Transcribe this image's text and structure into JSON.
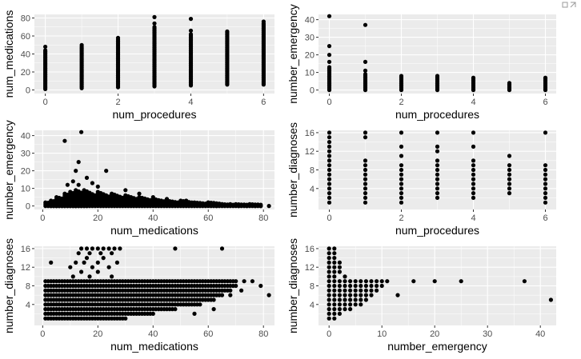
{
  "chart_data": [
    {
      "type": "scatter",
      "xlabel": "num_procedures",
      "ylabel": "num_medications",
      "xlim": [
        -0.3,
        6.3
      ],
      "ylim": [
        -4,
        84
      ],
      "xticks": [
        0,
        2,
        4,
        6
      ],
      "xminor": [
        1,
        3,
        5
      ],
      "yticks": [
        0,
        20,
        40,
        60,
        80
      ],
      "yminor": [
        10,
        30,
        50,
        70
      ],
      "ticklabels_x": [
        "0",
        "2",
        "4",
        "6"
      ],
      "ticklabels_y": [
        "0",
        "20",
        "40",
        "60",
        "80"
      ],
      "columns": [
        {
          "x": 0,
          "from": 1,
          "to": 44
        },
        {
          "x": 0,
          "y": 48
        },
        {
          "x": 1,
          "from": 2,
          "to": 48
        },
        {
          "x": 1,
          "y": 50
        },
        {
          "x": 2,
          "from": 3,
          "to": 56
        },
        {
          "x": 2,
          "y": 58
        },
        {
          "x": 3,
          "from": 4,
          "to": 70
        },
        {
          "x": 3,
          "y": 74
        },
        {
          "x": 3,
          "y": 81
        },
        {
          "x": 4,
          "from": 5,
          "to": 62
        },
        {
          "x": 4,
          "y": 66
        },
        {
          "x": 4,
          "y": 79
        },
        {
          "x": 5,
          "from": 6,
          "to": 64
        },
        {
          "x": 5,
          "y": 65
        },
        {
          "x": 6,
          "from": 6,
          "to": 74
        },
        {
          "x": 6,
          "y": 76
        }
      ]
    },
    {
      "type": "scatter",
      "xlabel": "num_procedures",
      "ylabel": "number_emergency",
      "xlim": [
        -0.3,
        6.3
      ],
      "ylim": [
        -2,
        43
      ],
      "xticks": [
        0,
        2,
        4,
        6
      ],
      "xminor": [
        1,
        3,
        5
      ],
      "yticks": [
        0,
        10,
        20,
        30,
        40
      ],
      "yminor": [
        5,
        15,
        25,
        35
      ],
      "ticklabels_x": [
        "0",
        "2",
        "4",
        "6"
      ],
      "ticklabels_y": [
        "0",
        "10",
        "20",
        "30",
        "40"
      ],
      "columns": [
        {
          "x": 0,
          "from": 0,
          "to": 13
        },
        {
          "x": 0,
          "y": 16
        },
        {
          "x": 0,
          "y": 20
        },
        {
          "x": 0,
          "y": 25
        },
        {
          "x": 0,
          "y": 42
        },
        {
          "x": 1,
          "from": 0,
          "to": 9
        },
        {
          "x": 1,
          "y": 11
        },
        {
          "x": 1,
          "y": 16
        },
        {
          "x": 1,
          "y": 37
        },
        {
          "x": 2,
          "from": 0,
          "to": 8
        },
        {
          "x": 3,
          "from": 0,
          "to": 8
        },
        {
          "x": 4,
          "from": 0,
          "to": 7
        },
        {
          "x": 5,
          "from": 0,
          "to": 4
        },
        {
          "x": 6,
          "from": 0,
          "to": 7
        }
      ]
    },
    {
      "type": "scatter",
      "xlabel": "num_medications",
      "ylabel": "number_emergency",
      "xlim": [
        -3,
        84
      ],
      "ylim": [
        -2,
        43
      ],
      "xticks": [
        0,
        20,
        40,
        60,
        80
      ],
      "xminor": [
        10,
        30,
        50,
        70
      ],
      "yticks": [
        0,
        10,
        20,
        30,
        40
      ],
      "yminor": [
        5,
        15,
        25,
        35
      ],
      "ticklabels_x": [
        "0",
        "20",
        "40",
        "60",
        "80"
      ],
      "ticklabels_y": [
        "0",
        "10",
        "20",
        "30",
        "40"
      ],
      "envelope": [
        [
          1,
          2
        ],
        [
          3,
          3
        ],
        [
          5,
          5
        ],
        [
          8,
          7
        ],
        [
          10,
          8
        ],
        [
          12,
          9
        ],
        [
          15,
          9
        ],
        [
          20,
          8
        ],
        [
          25,
          7
        ],
        [
          30,
          6
        ],
        [
          35,
          5
        ],
        [
          40,
          4
        ],
        [
          45,
          3
        ],
        [
          50,
          3
        ],
        [
          55,
          2
        ],
        [
          60,
          2
        ],
        [
          65,
          1
        ],
        [
          70,
          1
        ],
        [
          75,
          1
        ]
      ],
      "points": [
        [
          8,
          37
        ],
        [
          14,
          42
        ],
        [
          13,
          25
        ],
        [
          23,
          20
        ],
        [
          12,
          20
        ],
        [
          16,
          16
        ],
        [
          11,
          14
        ],
        [
          18,
          13
        ],
        [
          9,
          12
        ],
        [
          13,
          12
        ],
        [
          20,
          11
        ],
        [
          30,
          9
        ],
        [
          35,
          7
        ],
        [
          40,
          5
        ],
        [
          45,
          4
        ],
        [
          52,
          3
        ],
        [
          60,
          2
        ],
        [
          65,
          1
        ],
        [
          68,
          1
        ],
        [
          71,
          0
        ],
        [
          74,
          0
        ],
        [
          77,
          0
        ],
        [
          82,
          0
        ],
        [
          79,
          0
        ],
        [
          63,
          0
        ],
        [
          55,
          1
        ]
      ]
    },
    {
      "type": "scatter",
      "xlabel": "num_procedures",
      "ylabel": "number_diagnoses",
      "xlim": [
        -0.3,
        6.3
      ],
      "ylim": [
        -0.5,
        16.5
      ],
      "xticks": [
        0,
        2,
        4,
        6
      ],
      "xminor": [
        1,
        3,
        5
      ],
      "yticks": [
        4,
        8,
        12,
        16
      ],
      "yminor": [
        2,
        6,
        10,
        14
      ],
      "ticklabels_x": [
        "0",
        "2",
        "4",
        "6"
      ],
      "ticklabels_y": [
        "4",
        "8",
        "12",
        "16"
      ],
      "columns": [
        {
          "x": 0,
          "values": [
            1,
            2,
            3,
            4,
            5,
            6,
            7,
            8,
            9,
            10,
            11,
            12,
            13,
            14,
            15,
            16
          ]
        },
        {
          "x": 1,
          "values": [
            1,
            2,
            3,
            4,
            5,
            6,
            7,
            8,
            9,
            10,
            15,
            16
          ]
        },
        {
          "x": 2,
          "values": [
            1,
            2,
            3,
            4,
            5,
            6,
            7,
            8,
            9,
            11,
            13,
            16
          ]
        },
        {
          "x": 3,
          "values": [
            2,
            3,
            4,
            5,
            6,
            7,
            8,
            9,
            10,
            12,
            13,
            16
          ]
        },
        {
          "x": 4,
          "values": [
            2,
            3,
            4,
            5,
            6,
            7,
            8,
            9,
            10,
            13,
            16
          ]
        },
        {
          "x": 5,
          "values": [
            3,
            4,
            5,
            6,
            7,
            8,
            9,
            11
          ]
        },
        {
          "x": 6,
          "values": [
            1,
            2,
            3,
            4,
            5,
            6,
            7,
            8,
            9,
            16
          ]
        }
      ]
    },
    {
      "type": "scatter",
      "xlabel": "num_medications",
      "ylabel": "number_diagnoses",
      "xlim": [
        -3,
        84
      ],
      "ylim": [
        -0.5,
        16.5
      ],
      "xticks": [
        0,
        20,
        40,
        60,
        80
      ],
      "xminor": [
        10,
        30,
        50,
        70
      ],
      "yticks": [
        4,
        8,
        12,
        16
      ],
      "yminor": [
        2,
        6,
        10,
        14
      ],
      "ticklabels_x": [
        "0",
        "20",
        "40",
        "60",
        "80"
      ],
      "ticklabels_y": [
        "4",
        "8",
        "12",
        "16"
      ],
      "bands": [
        {
          "y": 1,
          "from": 1,
          "to": 30
        },
        {
          "y": 2,
          "from": 1,
          "to": 40
        },
        {
          "y": 3,
          "from": 1,
          "to": 48
        },
        {
          "y": 4,
          "from": 1,
          "to": 57
        },
        {
          "y": 5,
          "from": 1,
          "to": 62
        },
        {
          "y": 6,
          "from": 1,
          "to": 65
        },
        {
          "y": 7,
          "from": 1,
          "to": 68
        },
        {
          "y": 8,
          "from": 1,
          "to": 70
        },
        {
          "y": 9,
          "from": 1,
          "to": 70
        }
      ],
      "points": [
        [
          3,
          13
        ],
        [
          14,
          16
        ],
        [
          16,
          16
        ],
        [
          18,
          16
        ],
        [
          20,
          16
        ],
        [
          22,
          16
        ],
        [
          24,
          16
        ],
        [
          26,
          16
        ],
        [
          28,
          16
        ],
        [
          48,
          16
        ],
        [
          65,
          16
        ],
        [
          13,
          15
        ],
        [
          17,
          15
        ],
        [
          21,
          15
        ],
        [
          25,
          15
        ],
        [
          16,
          14
        ],
        [
          22,
          14
        ],
        [
          12,
          13
        ],
        [
          15,
          13
        ],
        [
          20,
          13
        ],
        [
          27,
          13
        ],
        [
          10,
          12
        ],
        [
          18,
          12
        ],
        [
          24,
          12
        ],
        [
          14,
          11
        ],
        [
          20,
          11
        ],
        [
          11,
          10
        ],
        [
          17,
          10
        ],
        [
          25,
          10
        ],
        [
          73,
          9
        ],
        [
          76,
          9
        ],
        [
          79,
          8
        ],
        [
          82,
          6
        ],
        [
          72,
          7
        ],
        [
          68,
          6
        ],
        [
          62,
          3
        ],
        [
          55,
          2
        ]
      ]
    },
    {
      "type": "scatter",
      "xlabel": "number_emergency",
      "ylabel": "number_diagnoses",
      "xlim": [
        -2,
        43
      ],
      "ylim": [
        -0.5,
        16.5
      ],
      "xticks": [
        0,
        10,
        20,
        30,
        40
      ],
      "xminor": [
        5,
        15,
        25,
        35
      ],
      "yticks": [
        4,
        8,
        12,
        16
      ],
      "yminor": [
        2,
        6,
        10,
        14
      ],
      "ticklabels_x": [
        "0",
        "10",
        "20",
        "30",
        "40"
      ],
      "ticklabels_y": [
        "4",
        "8",
        "12",
        "16"
      ],
      "columns": [
        {
          "x": 0,
          "values": [
            1,
            2,
            3,
            4,
            5,
            6,
            7,
            8,
            9,
            10,
            11,
            12,
            13,
            14,
            15,
            16
          ]
        },
        {
          "x": 1,
          "values": [
            1,
            2,
            3,
            4,
            5,
            6,
            7,
            8,
            9,
            10,
            11,
            12,
            13,
            14,
            15,
            16
          ]
        },
        {
          "x": 2,
          "values": [
            2,
            3,
            4,
            5,
            6,
            7,
            8,
            9,
            11,
            12,
            13
          ]
        },
        {
          "x": 3,
          "values": [
            3,
            4,
            5,
            6,
            7,
            8,
            9,
            10
          ]
        },
        {
          "x": 4,
          "values": [
            3,
            4,
            5,
            6,
            7,
            8,
            9
          ]
        },
        {
          "x": 5,
          "values": [
            4,
            5,
            6,
            7,
            8,
            9
          ]
        },
        {
          "x": 6,
          "values": [
            4,
            5,
            6,
            7,
            8,
            9
          ]
        },
        {
          "x": 7,
          "values": [
            5,
            6,
            7,
            8,
            9
          ]
        },
        {
          "x": 8,
          "values": [
            6,
            7,
            8,
            9
          ]
        },
        {
          "x": 9,
          "values": [
            7,
            8,
            9
          ]
        },
        {
          "x": 10,
          "values": [
            8,
            9
          ]
        },
        {
          "x": 11,
          "values": [
            9
          ]
        }
      ],
      "points": [
        [
          16,
          9
        ],
        [
          20,
          9
        ],
        [
          25,
          9
        ],
        [
          37,
          9
        ],
        [
          42,
          5
        ],
        [
          13,
          6
        ]
      ]
    }
  ],
  "icons": {
    "corner": "resize-icon"
  },
  "colors": {
    "panel": "#ebebeb",
    "grid": "#ffffff",
    "point": "#000000",
    "tick_label": "#4d4d4d"
  }
}
